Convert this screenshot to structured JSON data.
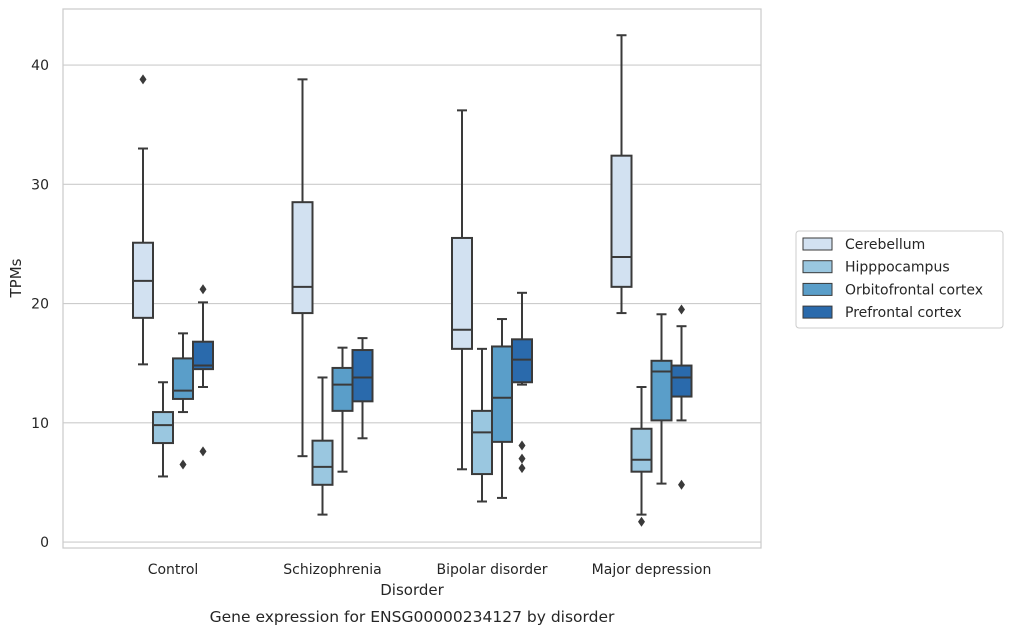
{
  "chart_data": {
    "type": "box",
    "caption": "Gene expression for ENSG00000234127 by disorder",
    "xlabel": "Disorder",
    "ylabel": "TPMs",
    "ylim": [
      -0.5,
      44.7
    ],
    "yticks": [
      0,
      10,
      20,
      30,
      40
    ],
    "grid": "horizontal",
    "legend_position": "right",
    "categories": [
      "Control",
      "Schizophrenia",
      "Bipolar disorder",
      "Major depression"
    ],
    "series": [
      {
        "name": "Cerebellum",
        "color": "#d2e1f1",
        "boxes": [
          {
            "whisker_low": 14.9,
            "q1": 18.8,
            "median": 21.9,
            "q3": 25.1,
            "whisker_high": 33.0,
            "outliers": [
              38.8
            ]
          },
          {
            "whisker_low": 7.2,
            "q1": 19.2,
            "median": 21.4,
            "q3": 28.5,
            "whisker_high": 38.8,
            "outliers": []
          },
          {
            "whisker_low": 6.1,
            "q1": 16.2,
            "median": 17.8,
            "q3": 25.5,
            "whisker_high": 36.2,
            "outliers": []
          },
          {
            "whisker_low": 19.2,
            "q1": 21.4,
            "median": 23.9,
            "q3": 32.4,
            "whisker_high": 42.5,
            "outliers": []
          }
        ]
      },
      {
        "name": "Hipppocampus",
        "color": "#9ac7e0",
        "boxes": [
          {
            "whisker_low": 5.5,
            "q1": 8.3,
            "median": 9.8,
            "q3": 10.9,
            "whisker_high": 13.4,
            "outliers": []
          },
          {
            "whisker_low": 2.3,
            "q1": 4.8,
            "median": 6.3,
            "q3": 8.5,
            "whisker_high": 13.8,
            "outliers": []
          },
          {
            "whisker_low": 3.4,
            "q1": 5.7,
            "median": 9.2,
            "q3": 11.0,
            "whisker_high": 16.2,
            "outliers": []
          },
          {
            "whisker_low": 2.3,
            "q1": 5.9,
            "median": 6.9,
            "q3": 9.5,
            "whisker_high": 13.0,
            "outliers": [
              1.7
            ]
          }
        ]
      },
      {
        "name": "Orbitofrontal cortex",
        "color": "#5a9ec9",
        "boxes": [
          {
            "whisker_low": 10.9,
            "q1": 12.0,
            "median": 12.7,
            "q3": 15.4,
            "whisker_high": 17.5,
            "outliers": [
              6.5
            ]
          },
          {
            "whisker_low": 5.9,
            "q1": 11.0,
            "median": 13.2,
            "q3": 14.6,
            "whisker_high": 16.3,
            "outliers": []
          },
          {
            "whisker_low": 3.7,
            "q1": 8.4,
            "median": 12.1,
            "q3": 16.4,
            "whisker_high": 18.7,
            "outliers": []
          },
          {
            "whisker_low": 4.9,
            "q1": 10.2,
            "median": 14.3,
            "q3": 15.2,
            "whisker_high": 19.1,
            "outliers": []
          }
        ]
      },
      {
        "name": "Prefrontal cortex",
        "color": "#2a6aac",
        "boxes": [
          {
            "whisker_low": 13.0,
            "q1": 14.5,
            "median": 14.8,
            "q3": 16.8,
            "whisker_high": 20.1,
            "outliers": [
              7.6,
              21.2
            ]
          },
          {
            "whisker_low": 8.7,
            "q1": 11.8,
            "median": 13.8,
            "q3": 16.1,
            "whisker_high": 17.1,
            "outliers": []
          },
          {
            "whisker_low": 13.2,
            "q1": 13.4,
            "median": 15.3,
            "q3": 17.0,
            "whisker_high": 20.9,
            "outliers": [
              6.2,
              7.0,
              8.1
            ]
          },
          {
            "whisker_low": 10.2,
            "q1": 12.2,
            "median": 13.8,
            "q3": 14.8,
            "whisker_high": 18.1,
            "outliers": [
              4.8,
              19.5
            ]
          }
        ]
      }
    ]
  }
}
